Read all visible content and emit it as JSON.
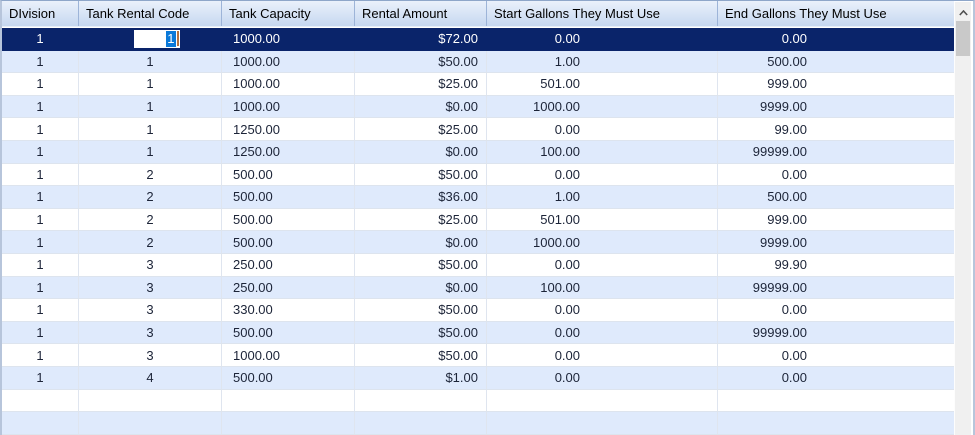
{
  "grid": {
    "columns": [
      {
        "label": "DIvision"
      },
      {
        "label": "Tank Rental Code"
      },
      {
        "label": "Tank Capacity"
      },
      {
        "label": "Rental Amount"
      },
      {
        "label": "Start Gallons They Must Use"
      },
      {
        "label": "End Gallons They Must Use"
      }
    ],
    "rows": [
      [
        "1",
        "1",
        "1000.00",
        "$72.00",
        "0.00",
        "0.00"
      ],
      [
        "1",
        "1",
        "1000.00",
        "$50.00",
        "1.00",
        "500.00"
      ],
      [
        "1",
        "1",
        "1000.00",
        "$25.00",
        "501.00",
        "999.00"
      ],
      [
        "1",
        "1",
        "1000.00",
        "$0.00",
        "1000.00",
        "9999.00"
      ],
      [
        "1",
        "1",
        "1250.00",
        "$25.00",
        "0.00",
        "99.00"
      ],
      [
        "1",
        "1",
        "1250.00",
        "$0.00",
        "100.00",
        "99999.00"
      ],
      [
        "1",
        "2",
        "500.00",
        "$50.00",
        "0.00",
        "0.00"
      ],
      [
        "1",
        "2",
        "500.00",
        "$36.00",
        "1.00",
        "500.00"
      ],
      [
        "1",
        "2",
        "500.00",
        "$25.00",
        "501.00",
        "999.00"
      ],
      [
        "1",
        "2",
        "500.00",
        "$0.00",
        "1000.00",
        "9999.00"
      ],
      [
        "1",
        "3",
        "250.00",
        "$50.00",
        "0.00",
        "99.90"
      ],
      [
        "1",
        "3",
        "250.00",
        "$0.00",
        "100.00",
        "99999.00"
      ],
      [
        "1",
        "3",
        "330.00",
        "$50.00",
        "0.00",
        "0.00"
      ],
      [
        "1",
        "3",
        "500.00",
        "$50.00",
        "0.00",
        "99999.00"
      ],
      [
        "1",
        "3",
        "1000.00",
        "$50.00",
        "0.00",
        "0.00"
      ],
      [
        "1",
        "4",
        "500.00",
        "$1.00",
        "0.00",
        "0.00"
      ],
      [
        "",
        "",
        "",
        "",
        "",
        ""
      ],
      [
        "",
        "",
        "",
        "",
        "",
        ""
      ]
    ],
    "selected_row_index": 0,
    "edit_cell": {
      "row": 0,
      "col": 1,
      "value": "1"
    }
  },
  "colors": {
    "selected_row_bg": "#0a246a",
    "selected_row_text": "#ffffff",
    "alt_row_bg": "#dfeafc",
    "header_bg_top": "#eaf1fb",
    "header_bg_bottom": "#c6d8f0",
    "header_separator": "#9db4d8",
    "edit_selection_bg": "#0b79d9",
    "edit_caret": "#b5713f",
    "scroll_thumb": "#c9c9c9",
    "scroll_track": "#f0f0f0"
  }
}
